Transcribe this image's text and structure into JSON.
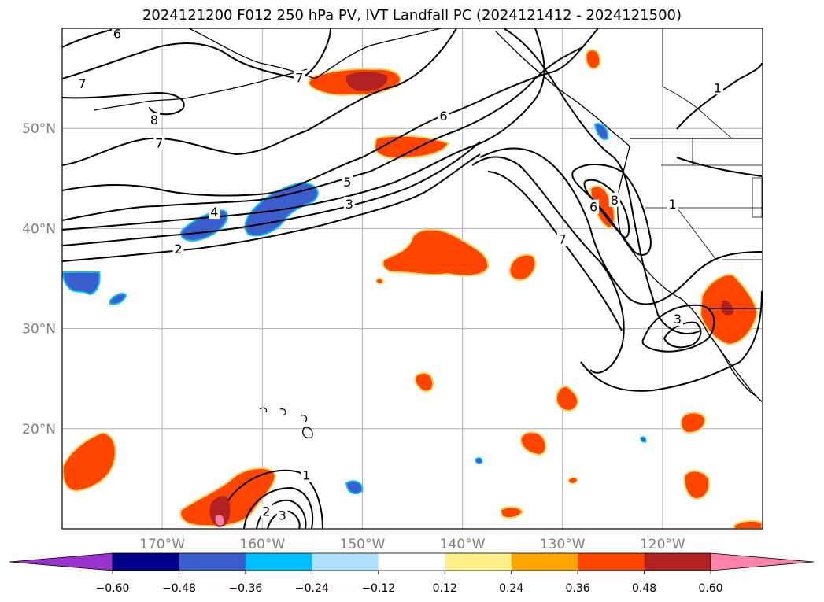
{
  "title": "2024121200 F012 250 hPa PV, IVT Landfall PC (2024121412 - 2024121500)",
  "map": {
    "lon_range": [
      -180,
      -110
    ],
    "lat_range": [
      10,
      60
    ],
    "lon_ticks": [
      {
        "lon": -170,
        "label": "170°W"
      },
      {
        "lon": -160,
        "label": "160°W"
      },
      {
        "lon": -150,
        "label": "150°W"
      },
      {
        "lon": -140,
        "label": "140°W"
      },
      {
        "lon": -130,
        "label": "130°W"
      },
      {
        "lon": -120,
        "label": "120°W"
      }
    ],
    "lat_ticks": [
      {
        "lat": 20,
        "label": "20°N"
      },
      {
        "lat": 30,
        "label": "30°N"
      },
      {
        "lat": 40,
        "label": "40°N"
      },
      {
        "lat": 50,
        "label": "50°N"
      }
    ],
    "gridlines": true,
    "contour_labels": [
      {
        "text": "6",
        "lon": -174.5,
        "lat": 59.4
      },
      {
        "text": "7",
        "lon": -178,
        "lat": 54.4
      },
      {
        "text": "8",
        "lon": -170.8,
        "lat": 50.8
      },
      {
        "text": "7",
        "lon": -170.3,
        "lat": 48.5
      },
      {
        "text": "7",
        "lon": -156.3,
        "lat": 55.0
      },
      {
        "text": "6",
        "lon": -141.9,
        "lat": 51.2
      },
      {
        "text": "5",
        "lon": -151.5,
        "lat": 44.6
      },
      {
        "text": "3",
        "lon": -151.3,
        "lat": 42.4
      },
      {
        "text": "4",
        "lon": -164.8,
        "lat": 41.6
      },
      {
        "text": "2",
        "lon": -168.4,
        "lat": 37.9
      },
      {
        "text": "6",
        "lon": -126.9,
        "lat": 42.1
      },
      {
        "text": "8",
        "lon": -124.8,
        "lat": 42.8
      },
      {
        "text": "7",
        "lon": -130.0,
        "lat": 38.9
      },
      {
        "text": "1",
        "lon": -119.0,
        "lat": 42.4
      },
      {
        "text": "3",
        "lon": -118.5,
        "lat": 30.9
      },
      {
        "text": "1",
        "lon": -114.5,
        "lat": 54.0
      },
      {
        "text": "1",
        "lon": -155.6,
        "lat": 15.3
      },
      {
        "text": "2",
        "lon": -159.6,
        "lat": 11.7
      },
      {
        "text": "3",
        "lon": -158.0,
        "lat": 11.3
      }
    ]
  },
  "colorbar": {
    "ticks": [
      "−0.60",
      "−0.48",
      "−0.36",
      "−0.24",
      "−0.12",
      "0.12",
      "0.24",
      "0.36",
      "0.48",
      "0.60"
    ],
    "colors": [
      "#9932cc",
      "#00008b",
      "#3a5fcd",
      "#00bfff",
      "#b0e2ff",
      "#ffffff",
      "#fff08c",
      "#ffa500",
      "#ff4500",
      "#b22222",
      "#ff82ab"
    ]
  }
}
